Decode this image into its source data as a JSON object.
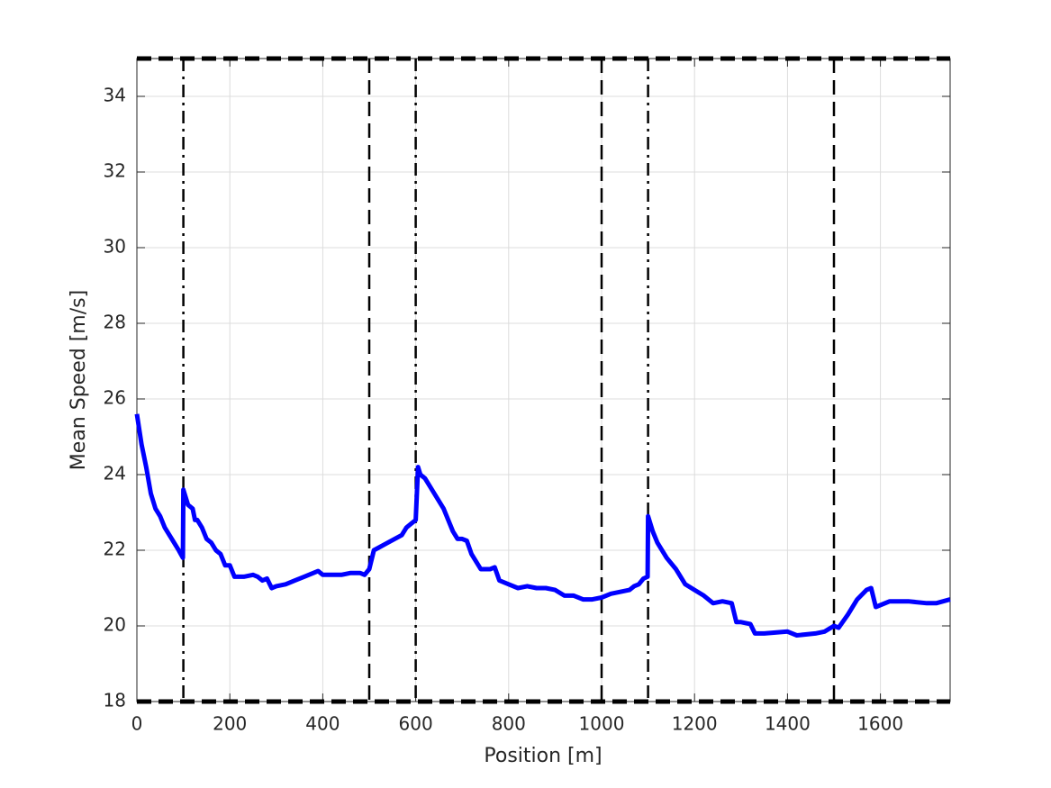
{
  "chart_data": {
    "type": "line",
    "x_label": "Position [m]",
    "y_label": "Mean Speed [m/s]",
    "xlim": [
      0,
      1750
    ],
    "ylim": [
      18,
      35
    ],
    "xticks": [
      0,
      200,
      400,
      600,
      800,
      1000,
      1200,
      1400,
      1600
    ],
    "yticks": [
      18,
      20,
      22,
      24,
      26,
      28,
      30,
      32,
      34
    ],
    "grid": true,
    "hlines": [
      {
        "y": 35,
        "style": "dashed"
      },
      {
        "y": 18,
        "style": "dashed"
      }
    ],
    "vlines": [
      {
        "x": 100,
        "style": "dashdot"
      },
      {
        "x": 500,
        "style": "dashed"
      },
      {
        "x": 600,
        "style": "dashdot"
      },
      {
        "x": 1000,
        "style": "dashed"
      },
      {
        "x": 1100,
        "style": "dashdot"
      },
      {
        "x": 1500,
        "style": "dashed"
      }
    ],
    "x": [
      0,
      10,
      20,
      30,
      40,
      50,
      60,
      70,
      80,
      90,
      99,
      100,
      105,
      110,
      120,
      125,
      130,
      140,
      150,
      160,
      170,
      180,
      190,
      200,
      210,
      230,
      250,
      260,
      270,
      280,
      290,
      300,
      320,
      340,
      360,
      380,
      390,
      400,
      420,
      440,
      460,
      480,
      490,
      500,
      510,
      540,
      570,
      580,
      590,
      600,
      605,
      610,
      620,
      640,
      660,
      670,
      680,
      690,
      700,
      710,
      720,
      740,
      760,
      770,
      780,
      800,
      820,
      840,
      860,
      880,
      900,
      920,
      940,
      960,
      980,
      1000,
      1020,
      1040,
      1060,
      1070,
      1080,
      1090,
      1099,
      1100,
      1110,
      1120,
      1140,
      1160,
      1180,
      1200,
      1220,
      1240,
      1260,
      1280,
      1290,
      1300,
      1320,
      1330,
      1350,
      1400,
      1420,
      1460,
      1480,
      1500,
      1510,
      1530,
      1550,
      1570,
      1580,
      1590,
      1620,
      1660,
      1700,
      1720,
      1750
    ],
    "series": [
      {
        "color": "#0000ff",
        "values": [
          25.6,
          24.8,
          24.2,
          23.5,
          23.1,
          22.9,
          22.6,
          22.4,
          22.2,
          22.0,
          21.8,
          23.6,
          23.4,
          23.2,
          23.1,
          22.8,
          22.8,
          22.6,
          22.3,
          22.2,
          22.0,
          21.9,
          21.6,
          21.6,
          21.3,
          21.3,
          21.35,
          21.3,
          21.2,
          21.25,
          21.0,
          21.05,
          21.1,
          21.2,
          21.3,
          21.4,
          21.45,
          21.35,
          21.35,
          21.35,
          21.4,
          21.4,
          21.35,
          21.5,
          22.0,
          22.2,
          22.4,
          22.6,
          22.7,
          22.8,
          24.2,
          24.0,
          23.9,
          23.5,
          23.1,
          22.8,
          22.5,
          22.3,
          22.3,
          22.25,
          21.9,
          21.5,
          21.5,
          21.55,
          21.2,
          21.1,
          21.0,
          21.05,
          21.0,
          21.0,
          20.95,
          20.8,
          20.8,
          20.7,
          20.7,
          20.75,
          20.85,
          20.9,
          20.95,
          21.05,
          21.1,
          21.25,
          21.3,
          22.9,
          22.5,
          22.2,
          21.8,
          21.5,
          21.1,
          20.95,
          20.8,
          20.6,
          20.65,
          20.6,
          20.1,
          20.1,
          20.05,
          19.8,
          19.8,
          19.85,
          19.75,
          19.8,
          19.85,
          20.0,
          19.95,
          20.3,
          20.7,
          20.95,
          21.0,
          20.5,
          20.65,
          20.65,
          20.6,
          20.6,
          20.7
        ]
      }
    ]
  }
}
